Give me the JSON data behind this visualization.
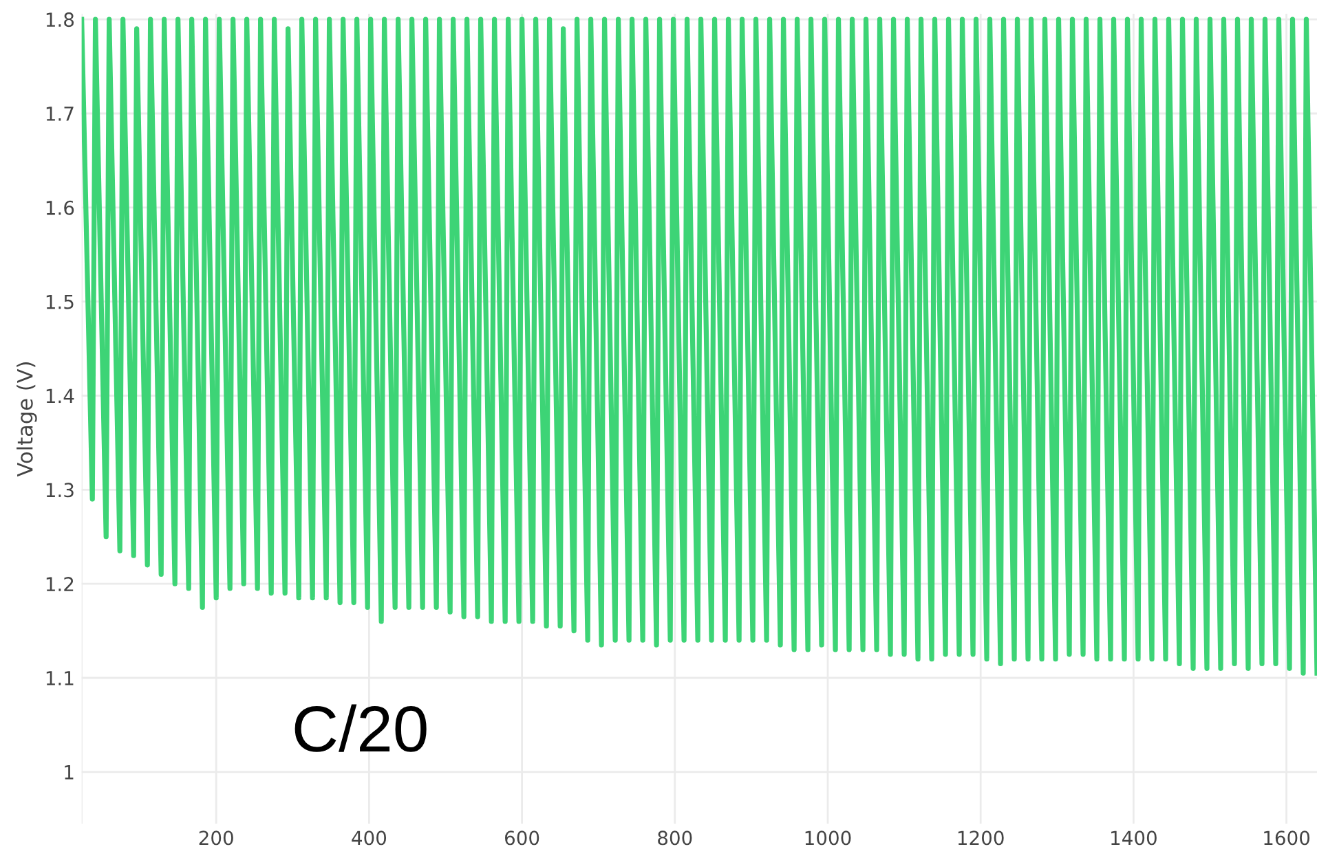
{
  "chart_data": {
    "type": "line",
    "ylabel": "Voltage (V)",
    "annotations": [
      "C/20"
    ],
    "xlim": [
      24,
      1640
    ],
    "ylim": [
      0.945,
      1.806
    ],
    "xticks": [
      200,
      400,
      600,
      800,
      1000,
      1200,
      1400,
      1600
    ],
    "yticks": [
      1,
      1.1,
      1.2,
      1.3,
      1.4,
      1.5,
      1.6,
      1.7,
      1.8
    ],
    "grid": true,
    "marker": "none",
    "line_style": "solid",
    "series": [
      {
        "color": "#3dd476",
        "x": [
          24,
          38,
          42,
          56,
          60,
          74,
          78,
          92,
          96,
          110,
          114,
          128,
          132,
          146,
          150,
          164,
          168,
          182,
          186,
          200,
          204,
          218,
          222,
          236,
          240,
          254,
          258,
          272,
          276,
          290,
          294,
          308,
          312,
          326,
          330,
          344,
          348,
          362,
          366,
          380,
          384,
          398,
          402,
          416,
          420,
          434,
          438,
          452,
          456,
          470,
          474,
          488,
          492,
          506,
          510,
          524,
          528,
          542,
          546,
          560,
          564,
          578,
          582,
          596,
          600,
          614,
          618,
          632,
          636,
          650,
          654,
          668,
          672,
          686,
          690,
          704,
          708,
          722,
          726,
          740,
          744,
          758,
          762,
          776,
          780,
          794,
          798,
          812,
          816,
          830,
          834,
          848,
          852,
          866,
          870,
          884,
          888,
          902,
          906,
          920,
          924,
          938,
          942,
          956,
          960,
          974,
          978,
          992,
          996,
          1010,
          1014,
          1028,
          1032,
          1046,
          1050,
          1064,
          1068,
          1082,
          1086,
          1100,
          1104,
          1118,
          1122,
          1136,
          1140,
          1154,
          1158,
          1172,
          1176,
          1190,
          1194,
          1208,
          1212,
          1226,
          1230,
          1244,
          1248,
          1262,
          1266,
          1280,
          1284,
          1298,
          1302,
          1316,
          1320,
          1334,
          1338,
          1352,
          1356,
          1370,
          1374,
          1388,
          1392,
          1406,
          1410,
          1424,
          1428,
          1442,
          1446,
          1460,
          1464,
          1478,
          1482,
          1496,
          1500,
          1514,
          1518,
          1532,
          1536,
          1550,
          1554,
          1568,
          1572,
          1586,
          1590,
          1604,
          1608,
          1622,
          1626,
          1640
        ],
        "values": [
          1.8,
          1.29,
          1.8,
          1.25,
          1.8,
          1.235,
          1.8,
          1.23,
          1.79,
          1.22,
          1.8,
          1.21,
          1.8,
          1.2,
          1.8,
          1.195,
          1.8,
          1.175,
          1.8,
          1.185,
          1.8,
          1.195,
          1.8,
          1.2,
          1.8,
          1.195,
          1.8,
          1.19,
          1.8,
          1.19,
          1.79,
          1.185,
          1.8,
          1.185,
          1.8,
          1.185,
          1.8,
          1.18,
          1.8,
          1.18,
          1.8,
          1.175,
          1.8,
          1.16,
          1.8,
          1.175,
          1.8,
          1.175,
          1.8,
          1.175,
          1.8,
          1.175,
          1.8,
          1.17,
          1.8,
          1.165,
          1.8,
          1.165,
          1.8,
          1.16,
          1.8,
          1.16,
          1.8,
          1.16,
          1.8,
          1.16,
          1.8,
          1.155,
          1.8,
          1.155,
          1.79,
          1.15,
          1.8,
          1.14,
          1.8,
          1.135,
          1.8,
          1.14,
          1.8,
          1.14,
          1.8,
          1.14,
          1.8,
          1.135,
          1.8,
          1.14,
          1.8,
          1.14,
          1.8,
          1.14,
          1.8,
          1.14,
          1.8,
          1.14,
          1.8,
          1.14,
          1.8,
          1.14,
          1.8,
          1.14,
          1.8,
          1.135,
          1.8,
          1.13,
          1.8,
          1.13,
          1.8,
          1.135,
          1.8,
          1.13,
          1.8,
          1.13,
          1.8,
          1.13,
          1.8,
          1.13,
          1.8,
          1.125,
          1.8,
          1.125,
          1.8,
          1.12,
          1.8,
          1.12,
          1.8,
          1.125,
          1.8,
          1.125,
          1.8,
          1.125,
          1.8,
          1.12,
          1.8,
          1.115,
          1.8,
          1.12,
          1.8,
          1.12,
          1.8,
          1.12,
          1.8,
          1.12,
          1.8,
          1.125,
          1.8,
          1.125,
          1.8,
          1.12,
          1.8,
          1.12,
          1.8,
          1.12,
          1.8,
          1.12,
          1.8,
          1.12,
          1.8,
          1.12,
          1.8,
          1.115,
          1.8,
          1.11,
          1.8,
          1.11,
          1.8,
          1.11,
          1.8,
          1.115,
          1.8,
          1.11,
          1.8,
          1.115,
          1.8,
          1.115,
          1.8,
          1.11,
          1.8,
          1.105,
          1.8,
          1.105
        ]
      }
    ]
  }
}
